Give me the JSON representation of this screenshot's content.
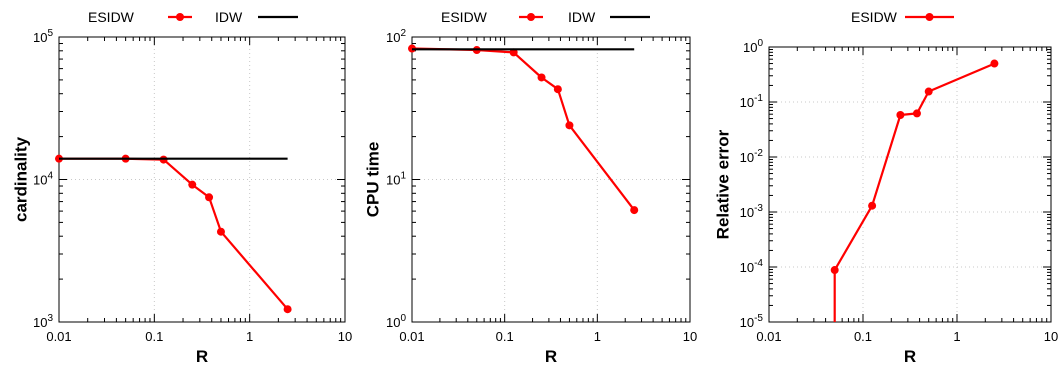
{
  "chart_data": [
    {
      "type": "line",
      "xlabel": "R",
      "ylabel": "cardinality",
      "xscale": "log",
      "yscale": "log",
      "xlim": [
        0.01,
        10
      ],
      "ylim": [
        1000,
        100000
      ],
      "grid": true,
      "legend_position": "top",
      "xticks": [
        {
          "value": 0.01,
          "label": "0.01"
        },
        {
          "value": 0.1,
          "label": "0.1"
        },
        {
          "value": 1,
          "label": "1"
        },
        {
          "value": 10,
          "label": "10"
        }
      ],
      "yticks": [
        {
          "value": 1000,
          "base": "10",
          "exp": "3"
        },
        {
          "value": 10000,
          "base": "10",
          "exp": "4"
        },
        {
          "value": 100000,
          "base": "10",
          "exp": "5"
        }
      ],
      "series": [
        {
          "name": "ESIDW",
          "color": "#ff0000",
          "marker": "circle",
          "x": [
            0.01,
            0.05,
            0.125,
            0.25,
            0.375,
            0.5,
            2.5
          ],
          "y": [
            14000,
            14000,
            13800,
            9200,
            7500,
            4300,
            1230
          ]
        },
        {
          "name": "IDW",
          "color": "#000000",
          "marker": "none",
          "x": [
            0.01,
            2.5
          ],
          "y": [
            14000,
            14000
          ]
        }
      ]
    },
    {
      "type": "line",
      "xlabel": "R",
      "ylabel": "CPU time",
      "xscale": "log",
      "yscale": "log",
      "xlim": [
        0.01,
        10
      ],
      "ylim": [
        1,
        100
      ],
      "grid": true,
      "legend_position": "top",
      "xticks": [
        {
          "value": 0.01,
          "label": "0.01"
        },
        {
          "value": 0.1,
          "label": "0.1"
        },
        {
          "value": 1,
          "label": "1"
        },
        {
          "value": 10,
          "label": "10"
        }
      ],
      "yticks": [
        {
          "value": 1,
          "base": "10",
          "exp": "0"
        },
        {
          "value": 10,
          "base": "10",
          "exp": "1"
        },
        {
          "value": 100,
          "base": "10",
          "exp": "2"
        }
      ],
      "series": [
        {
          "name": "ESIDW",
          "color": "#ff0000",
          "marker": "circle",
          "x": [
            0.01,
            0.05,
            0.125,
            0.25,
            0.375,
            0.5,
            2.5
          ],
          "y": [
            83,
            81,
            78,
            52,
            43,
            24,
            6.1
          ]
        },
        {
          "name": "IDW",
          "color": "#000000",
          "marker": "none",
          "x": [
            0.01,
            2.5
          ],
          "y": [
            82,
            82
          ]
        }
      ]
    },
    {
      "type": "line",
      "xlabel": "R",
      "ylabel": "Relative error",
      "xscale": "log",
      "yscale": "log",
      "xlim": [
        0.01,
        10
      ],
      "ylim": [
        1e-05,
        1
      ],
      "grid": true,
      "legend_position": "top",
      "xticks": [
        {
          "value": 0.01,
          "label": "0.01"
        },
        {
          "value": 0.1,
          "label": "0.1"
        },
        {
          "value": 1,
          "label": "1"
        },
        {
          "value": 10,
          "label": "10"
        }
      ],
      "yticks": [
        {
          "value": 1e-05,
          "base": "10",
          "exp": "-5"
        },
        {
          "value": 0.0001,
          "base": "10",
          "exp": "-4"
        },
        {
          "value": 0.001,
          "base": "10",
          "exp": "-3"
        },
        {
          "value": 0.01,
          "base": "10",
          "exp": "-2"
        },
        {
          "value": 0.1,
          "base": "10",
          "exp": "-1"
        },
        {
          "value": 1,
          "base": "10",
          "exp": "0"
        }
      ],
      "series": [
        {
          "name": "ESIDW",
          "color": "#ff0000",
          "marker": "circle",
          "x": [
            0.05,
            0.05,
            0.125,
            0.25,
            0.375,
            0.5,
            2.5
          ],
          "y": [
            1e-05,
            8.8e-05,
            0.0013,
            0.058,
            0.062,
            0.155,
            0.5
          ],
          "marker_skip": [
            0
          ]
        }
      ]
    }
  ]
}
